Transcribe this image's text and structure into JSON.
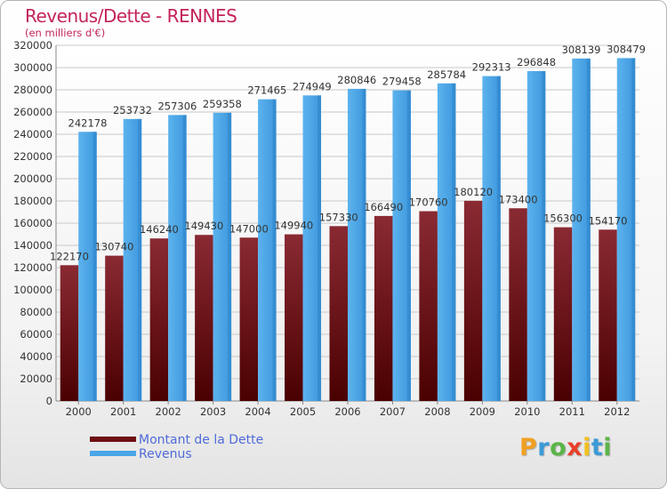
{
  "chart_data": {
    "type": "bar",
    "title": "Revenus/Dette - RENNES",
    "subtitle": "(en milliers d'€)",
    "categories": [
      "2000",
      "2001",
      "2002",
      "2003",
      "2004",
      "2005",
      "2006",
      "2007",
      "2008",
      "2009",
      "2010",
      "2011",
      "2012"
    ],
    "series": [
      {
        "name": "Montant de la Dette",
        "color": "#6e0f14",
        "values": [
          122170,
          130740,
          146240,
          149430,
          147000,
          149940,
          157330,
          166490,
          170760,
          180120,
          173400,
          156300,
          154170
        ],
        "data_labels": [
          "122170",
          "130740",
          "146240",
          "149430",
          "147000",
          "149940",
          "157330",
          "166490",
          "170760",
          "180120",
          "173400",
          "156300",
          "154170"
        ]
      },
      {
        "name": "Revenus",
        "color": "#4aa6e8",
        "values": [
          242178,
          253732,
          257306,
          259358,
          271465,
          274949,
          280846,
          279458,
          285784,
          292313,
          296848,
          308139,
          308479
        ],
        "data_labels": [
          "242178",
          "253732",
          "257306",
          "259358",
          "271465",
          "274949",
          "280846",
          "279458",
          "285784",
          "292313",
          "296848",
          "308139",
          "308479"
        ]
      }
    ],
    "ylim": [
      0,
      320000
    ],
    "yticks": [
      0,
      20000,
      40000,
      60000,
      80000,
      100000,
      120000,
      140000,
      160000,
      180000,
      200000,
      220000,
      240000,
      260000,
      280000,
      300000,
      320000
    ],
    "ytick_labels": [
      "0",
      "20000",
      "40000",
      "60000",
      "80000",
      "100000",
      "120000",
      "140000",
      "160000",
      "180000",
      "200000",
      "220000",
      "240000",
      "260000",
      "280000",
      "300000",
      "320000"
    ],
    "grid": "horizontal",
    "legend_position": "bottom-left"
  },
  "legend": {
    "items": [
      {
        "label": "Montant de la Dette",
        "color": "#6e0f14"
      },
      {
        "label": "Revenus",
        "color": "#4aa6e8"
      }
    ]
  },
  "logo": {
    "letters": [
      "P",
      "r",
      "o",
      "x",
      "i",
      "t",
      "i"
    ],
    "colors": [
      "#f0a020",
      "#3b9ad8",
      "#5ab548",
      "#e8402a",
      "#f0c020",
      "#3b9ad8",
      "#5ab548"
    ]
  }
}
